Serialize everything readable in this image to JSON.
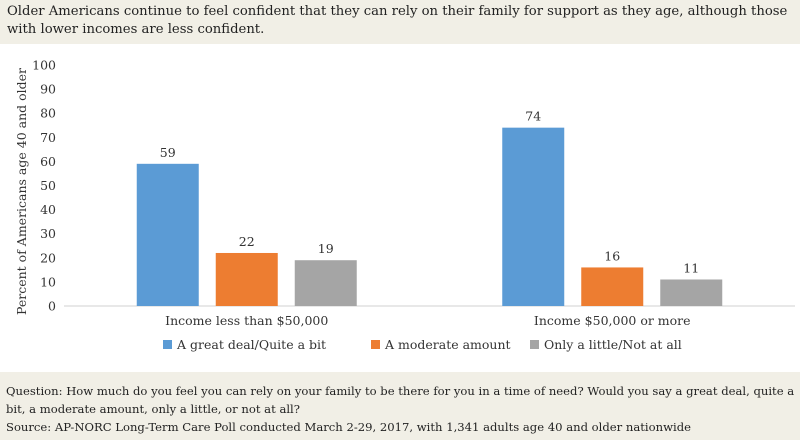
{
  "title": "Older Americans continue to feel confident that they can rely on their family for support as they age, although those with lower incomes are less confident.",
  "footer": {
    "question": "Question: How much do you feel you can rely on your family to be there for you in a time of need? Would you say a great deal, quite a bit, a moderate amount, only a little, or not at all?",
    "source": "Source: AP-NORC Long-Term Care Poll conducted March 2-29, 2017, with 1,341 adults age 40 and older nationwide"
  },
  "chart_data": {
    "type": "bar",
    "categories": [
      "Income less than $50,000",
      "Income $50,000 or more"
    ],
    "series": [
      {
        "name": "A great deal/Quite a bit",
        "values": [
          59,
          74
        ],
        "color": "#5b9bd5"
      },
      {
        "name": "A moderate amount",
        "values": [
          22,
          16
        ],
        "color": "#ed7d31"
      },
      {
        "name": "Only a little/Not at all",
        "values": [
          19,
          11
        ],
        "color": "#a5a5a5"
      }
    ],
    "ylabel": "Percent of Americans age 40 and older",
    "ylim": [
      0,
      100
    ],
    "yticks": [
      0,
      10,
      20,
      30,
      40,
      50,
      60,
      70,
      80,
      90,
      100
    ],
    "grid": false,
    "data_labels": true,
    "legend": "bottom"
  }
}
